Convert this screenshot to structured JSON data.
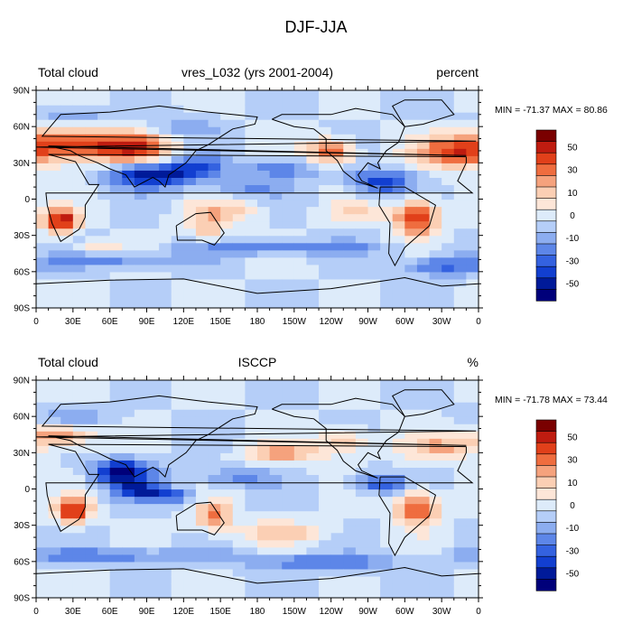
{
  "title": "DJF-JJA",
  "lat_labels": [
    "90N",
    "60N",
    "30N",
    "0",
    "30S",
    "60S",
    "90S"
  ],
  "lon_labels": [
    "0",
    "30E",
    "60E",
    "90E",
    "120E",
    "150E",
    "180",
    "150W",
    "120W",
    "90W",
    "60W",
    "30W",
    "0"
  ],
  "colorbar": {
    "labels": [
      "50",
      "30",
      "10",
      "0",
      "-10",
      "-30",
      "-50"
    ],
    "colors": [
      "#7a0000",
      "#bf1c10",
      "#e1401a",
      "#ef6d3f",
      "#f5a27d",
      "#fbcfb4",
      "#fde6d8",
      "#ddebfa",
      "#b5cef8",
      "#8cadf0",
      "#5d86e8",
      "#3462e0",
      "#123fd0",
      "#001a99",
      "#00007a"
    ]
  },
  "panels": [
    {
      "id": "model",
      "left_label": "Total cloud",
      "center_label": "vres_L032 (yrs 2001-2004)",
      "right_label": "percent",
      "min_max": "MIN = -71.37 MAX =  80.86"
    },
    {
      "id": "obs",
      "left_label": "Total cloud",
      "center_label": "ISCCP",
      "right_label": "%",
      "min_max": "MIN = -71.78 MAX =  73.44"
    }
  ]
}
